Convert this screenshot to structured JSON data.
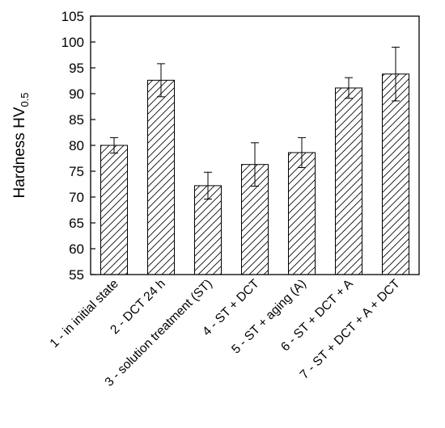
{
  "chart_data": {
    "type": "bar",
    "title": "",
    "xlabel": "",
    "ylabel_main": "Hardness HV",
    "ylabel_subscript": "0.5",
    "ylim": [
      55,
      105
    ],
    "yticks": [
      55,
      60,
      65,
      70,
      75,
      80,
      85,
      90,
      95,
      100,
      105
    ],
    "categories": [
      "1 -  in initial state",
      "2 - DCT 24 h",
      "3 - solution treatment (ST)",
      "4 -  ST + DCT",
      "5 - ST + aging (A)",
      "6 - ST + DCT + A",
      "7 - ST + DCT + A + DCT"
    ],
    "values": [
      80.0,
      92.6,
      72.2,
      76.3,
      78.6,
      91.1,
      93.8
    ],
    "errors": [
      1.5,
      3.2,
      2.6,
      4.2,
      2.9,
      2.0,
      5.2
    ],
    "bar_fill": "hatched",
    "grid": false,
    "legend": "none"
  }
}
